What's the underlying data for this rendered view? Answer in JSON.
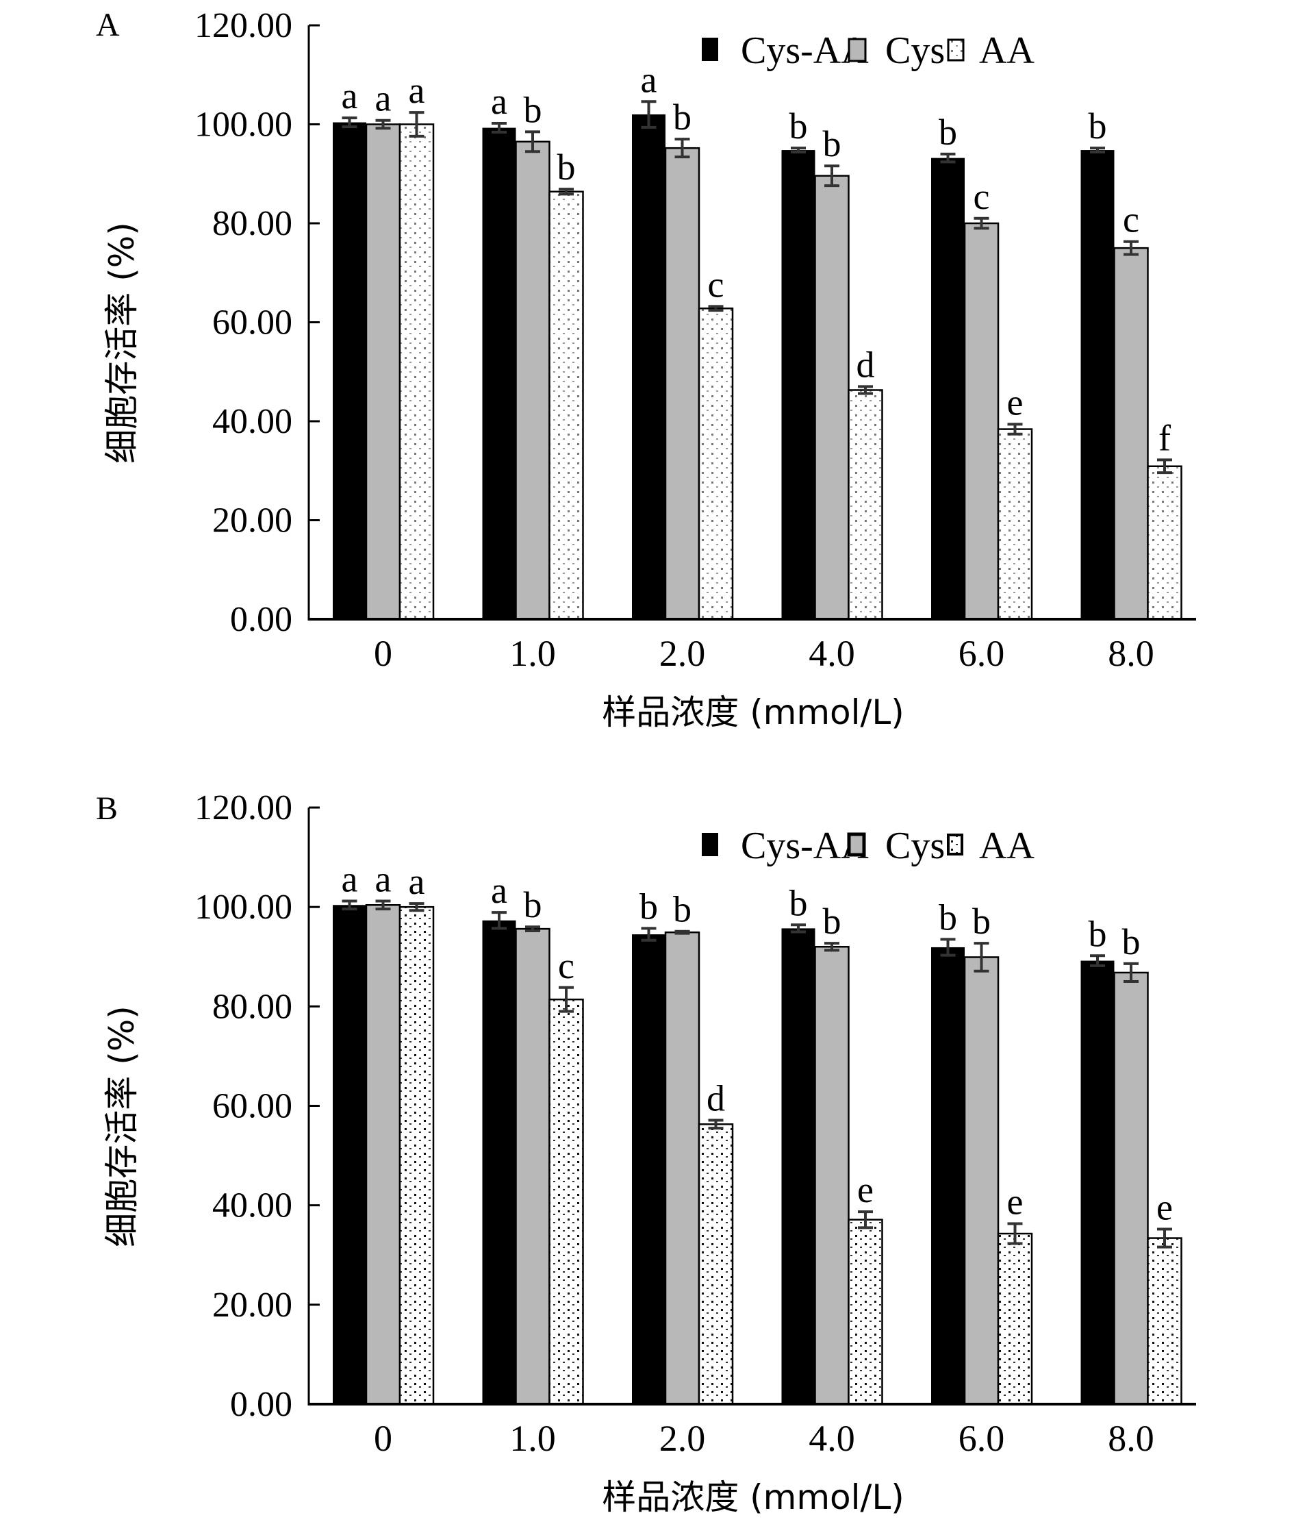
{
  "chart_data": [
    {
      "type": "bar",
      "panel_label": "A",
      "title": "",
      "xlabel": "样品浓度 (mmol/L)",
      "ylabel": "细胞存活率 (%)",
      "categories": [
        "0",
        "1.0",
        "2.0",
        "4.0",
        "6.0",
        "8.0"
      ],
      "ylim": [
        0,
        120
      ],
      "yticks": [
        "0.00",
        "20.00",
        "40.00",
        "60.00",
        "80.00",
        "100.00",
        "120.00"
      ],
      "ytick_values": [
        0,
        20,
        40,
        60,
        80,
        100,
        120
      ],
      "grid": false,
      "legend": {
        "placement": "top-right",
        "entries": [
          "Cys-AA",
          "Cys",
          "AA"
        ]
      },
      "series": [
        {
          "name": "Cys-AA",
          "style": "solid-black",
          "color": "#000000",
          "values": [
            100.4,
            99.3,
            102.0,
            94.8,
            93.2,
            94.8
          ],
          "errors": [
            0.9,
            0.9,
            2.6,
            0.4,
            0.8,
            0.4
          ],
          "sig_letters": [
            "a",
            "a",
            "a",
            "b",
            "b",
            "b"
          ]
        },
        {
          "name": "Cys",
          "style": "solid-gray",
          "color": "#b8b8b8",
          "values": [
            100.0,
            96.5,
            95.2,
            89.6,
            80.0,
            75.0
          ],
          "errors": [
            0.8,
            2.0,
            1.8,
            2.0,
            1.0,
            1.3
          ],
          "sig_letters": [
            "a",
            "b",
            "b",
            "b",
            "c",
            "c"
          ]
        },
        {
          "name": "AA",
          "style": "dotted-white",
          "color": "#ffffff",
          "values": [
            100.0,
            86.4,
            62.8,
            46.3,
            38.4,
            30.9
          ],
          "errors": [
            2.4,
            0.5,
            0.4,
            0.7,
            1.0,
            1.3
          ],
          "sig_letters": [
            "a",
            "b",
            "c",
            "d",
            "e",
            "f"
          ]
        }
      ]
    },
    {
      "type": "bar",
      "panel_label": "B",
      "title": "",
      "xlabel": "样品浓度 (mmol/L)",
      "ylabel": "细胞存活率 (%)",
      "categories": [
        "0",
        "1.0",
        "2.0",
        "4.0",
        "6.0",
        "8.0"
      ],
      "ylim": [
        0,
        120
      ],
      "yticks": [
        "0.00",
        "20.00",
        "40.00",
        "60.00",
        "80.00",
        "100.00",
        "120.00"
      ],
      "ytick_values": [
        0,
        20,
        40,
        60,
        80,
        100,
        120
      ],
      "grid": false,
      "legend": {
        "placement": "top-right",
        "entries": [
          "Cys-AA",
          "Cys",
          "AA"
        ]
      },
      "series": [
        {
          "name": "Cys-AA",
          "style": "solid-black",
          "color": "#000000",
          "values": [
            100.4,
            97.3,
            94.5,
            95.7,
            91.9,
            89.2
          ],
          "errors": [
            0.8,
            1.6,
            1.2,
            0.7,
            1.6,
            1.0
          ],
          "sig_letters": [
            "a",
            "a",
            "b",
            "b",
            "b",
            "b"
          ]
        },
        {
          "name": "Cys",
          "style": "solid-gray",
          "color": "#b8b8b8",
          "values": [
            100.4,
            95.6,
            94.9,
            92.0,
            89.9,
            86.8
          ],
          "errors": [
            0.8,
            0.4,
            0.2,
            0.7,
            2.8,
            1.8
          ],
          "sig_letters": [
            "a",
            "b",
            "b",
            "b",
            "b",
            "b"
          ]
        },
        {
          "name": "AA",
          "style": "dotted-white",
          "color": "#ffffff",
          "values": [
            100.0,
            81.4,
            56.3,
            37.1,
            34.3,
            33.4
          ],
          "errors": [
            0.7,
            2.4,
            0.8,
            1.6,
            2.0,
            1.8
          ],
          "sig_letters": [
            "a",
            "c",
            "d",
            "e",
            "e",
            "e"
          ]
        }
      ]
    }
  ]
}
